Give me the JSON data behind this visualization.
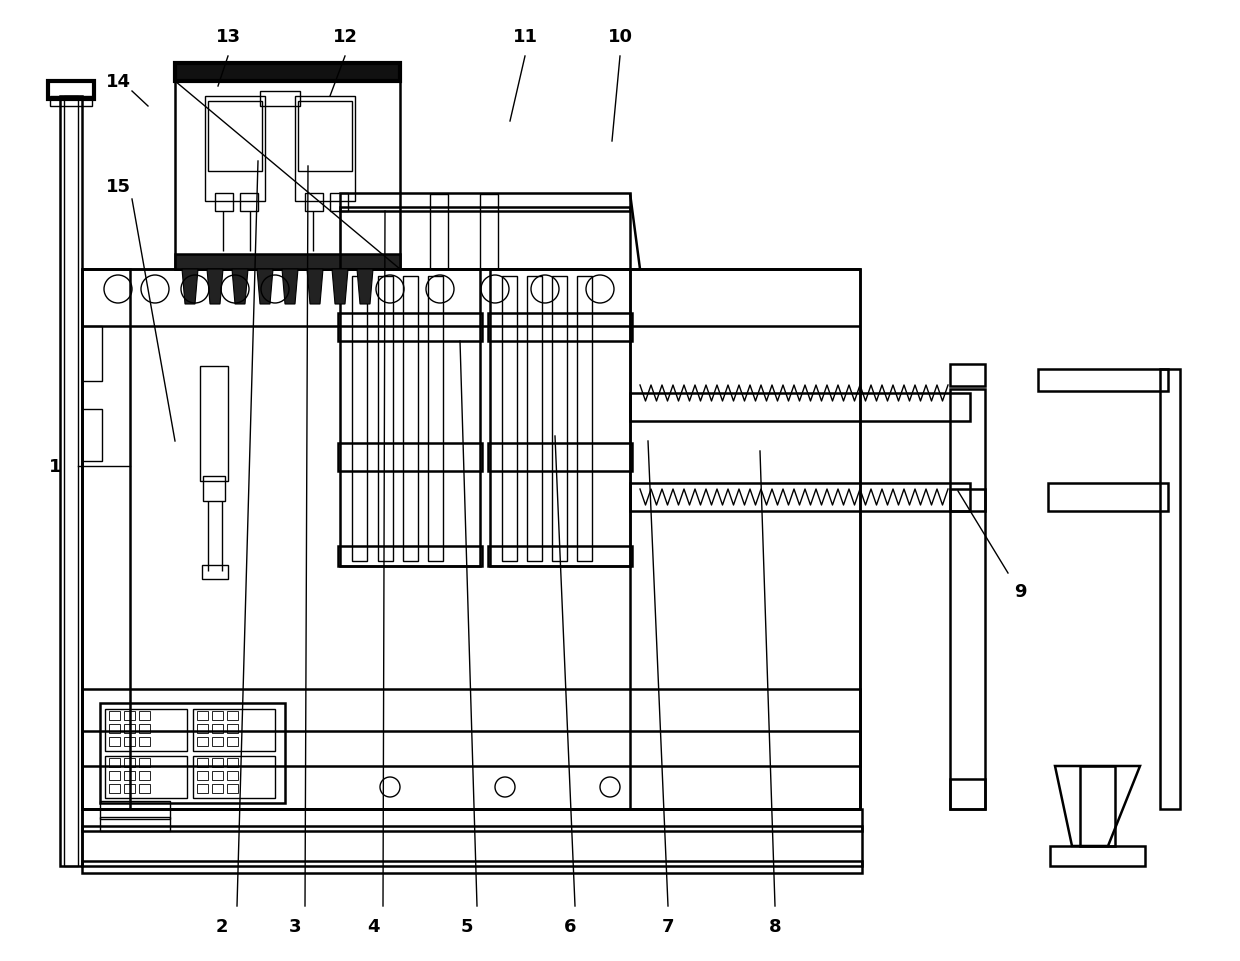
{
  "bg_color": "#ffffff",
  "line_color": "#000000",
  "lw_main": 1.8,
  "lw_thick": 3.0,
  "lw_thin": 1.0,
  "label_fs": 13
}
